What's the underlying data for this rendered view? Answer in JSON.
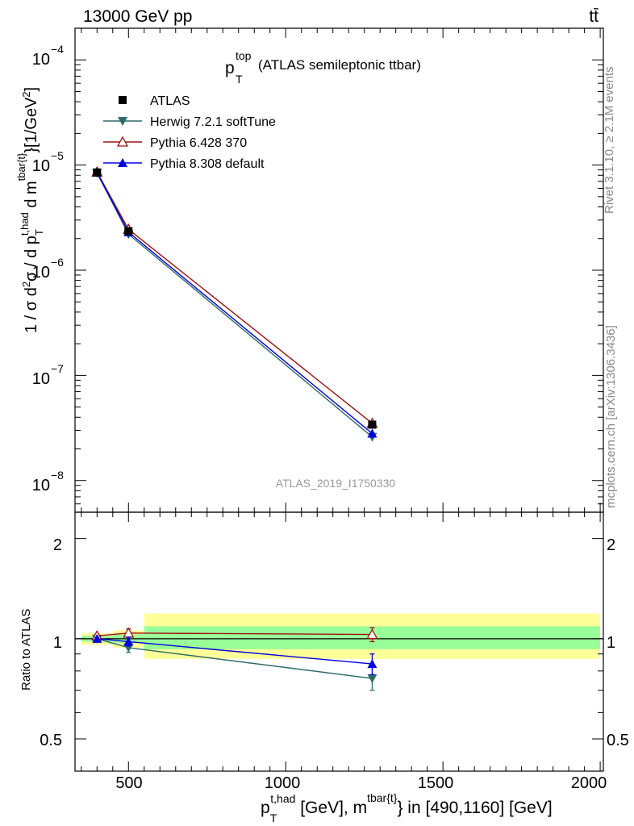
{
  "header": {
    "energy_label": "13000 GeV pp",
    "process_label": "tt̄",
    "title_main": "p",
    "title_sup": "top",
    "title_sub": "T",
    "title_rest": "(ATLAS semileptonic ttbar)",
    "watermark": "ATLAS_2019_I1750330",
    "side_rivet": "Rivet 3.1.10, ≥ 2.1M events",
    "side_mcplots": "mcplots.cern.ch [arXiv:1306.3436]"
  },
  "axes": {
    "ylabel_main": "1 / σ d²σ / d p_T^{t,had} d m^{tbar{t}} [1/GeV²]",
    "ylabel_ratio": "Ratio to ATLAS",
    "xlabel": "p_T^{t,had} [GeV], m^{tbar{t}} in [490,1160] [GeV]",
    "main_ticks": [
      "10",
      "10",
      "10",
      "10",
      "10"
    ],
    "main_tick_exps": [
      "−4",
      "−5",
      "−6",
      "−7",
      "−8"
    ],
    "ratio_ticks": [
      "2",
      "1",
      "0.5"
    ],
    "x_ticks": [
      "500",
      "1000",
      "1500",
      "2000"
    ]
  },
  "legend": [
    {
      "name": "ATLAS",
      "color": "#000000",
      "marker": "square"
    },
    {
      "name": "Herwig 7.2.1 softTune",
      "color": "#2e6b6b",
      "marker": "triangle-down"
    },
    {
      "name": "Pythia 6.428 370",
      "color": "#a01010",
      "marker": "triangle-up-open"
    },
    {
      "name": "Pythia 8.308 default",
      "color": "#0000e0",
      "marker": "triangle-up"
    }
  ],
  "chart_data": [
    {
      "type": "line",
      "panel": "main",
      "yscale": "log",
      "xlim": [
        330,
        2010
      ],
      "ylim": [
        5e-09,
        0.0002
      ],
      "x": [
        400,
        500,
        1275
      ],
      "series": [
        {
          "name": "ATLAS",
          "values": [
            8.5e-06,
            2.35e-06,
            3.4e-08
          ]
        },
        {
          "name": "Herwig 7.2.1 softTune",
          "values": [
            8.4e-06,
            2.2e-06,
            2.6e-08
          ]
        },
        {
          "name": "Pythia 6.428 370",
          "values": [
            8.6e-06,
            2.45e-06,
            3.5e-08
          ]
        },
        {
          "name": "Pythia 8.308 default",
          "values": [
            8.5e-06,
            2.3e-06,
            2.8e-08
          ]
        }
      ]
    },
    {
      "type": "line",
      "panel": "ratio",
      "yscale": "log",
      "xlim": [
        330,
        2010
      ],
      "ylim": [
        0.4,
        2.4
      ],
      "x": [
        400,
        500,
        1275
      ],
      "bands": [
        {
          "x": [
            350,
            450
          ],
          "stat": [
            0.98,
            1.02
          ],
          "total": [
            0.96,
            1.04
          ]
        },
        {
          "x": [
            450,
            550
          ],
          "stat": [
            0.97,
            1.03
          ],
          "total": [
            0.94,
            1.06
          ]
        },
        {
          "x": [
            550,
            2000
          ],
          "stat": [
            0.93,
            1.09
          ],
          "total": [
            0.87,
            1.19
          ]
        }
      ],
      "series": [
        {
          "name": "Herwig 7.2.1 softTune",
          "values": [
            1.0,
            0.94,
            0.76
          ],
          "errors": [
            0.01,
            0.03,
            0.06
          ]
        },
        {
          "name": "Pythia 6.428 370",
          "values": [
            1.02,
            1.04,
            1.03
          ],
          "errors": [
            0.01,
            0.03,
            0.05
          ]
        },
        {
          "name": "Pythia 8.308 default",
          "values": [
            1.0,
            0.98,
            0.84
          ],
          "errors": [
            0.01,
            0.03,
            0.06
          ]
        }
      ]
    }
  ]
}
